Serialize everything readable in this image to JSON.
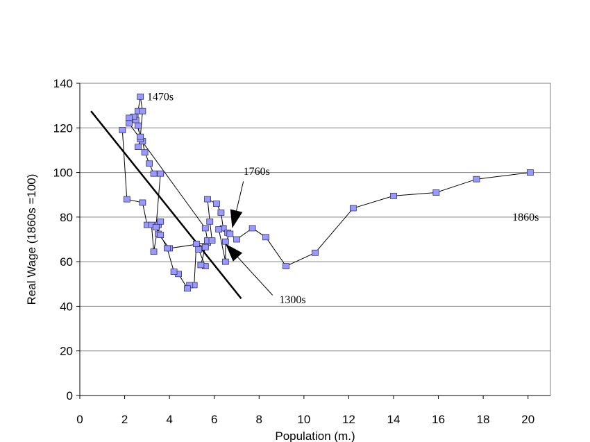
{
  "chart_data": {
    "type": "scatter",
    "xlabel": "Population (m.)",
    "ylabel": "Real Wage (1860s =100)",
    "xlim": [
      0,
      21
    ],
    "ylim": [
      0,
      140
    ],
    "x_ticks": [
      0,
      2,
      4,
      6,
      8,
      10,
      12,
      14,
      16,
      18,
      20
    ],
    "y_ticks": [
      0,
      20,
      40,
      60,
      80,
      100,
      120,
      140
    ],
    "grid": "horizontal",
    "series": [
      {
        "marker": "square",
        "color": "#9999ff",
        "points": [
          [
            1.9,
            119
          ],
          [
            2.1,
            88
          ],
          [
            2.8,
            86.5
          ],
          [
            3.0,
            76.5
          ],
          [
            3.2,
            76.5
          ],
          [
            3.3,
            64.5
          ],
          [
            3.5,
            76.5
          ],
          [
            3.6,
            78
          ],
          [
            3.5,
            72.5
          ],
          [
            4.0,
            66
          ],
          [
            5.7,
            68.5
          ],
          [
            5.3,
            65.5
          ],
          [
            5.6,
            58
          ],
          [
            5.4,
            58.5
          ],
          [
            5.6,
            66.5
          ],
          [
            5.2,
            68
          ],
          [
            5.1,
            49.5
          ],
          [
            4.9,
            49.5
          ],
          [
            4.8,
            48
          ],
          [
            4.4,
            54.5
          ],
          [
            4.2,
            55.5
          ],
          [
            3.9,
            66
          ],
          [
            3.6,
            72
          ],
          [
            3.4,
            75.5
          ],
          [
            3.6,
            99.5
          ],
          [
            3.3,
            99.5
          ],
          [
            3.1,
            104
          ],
          [
            2.9,
            109
          ],
          [
            2.8,
            114
          ],
          [
            2.6,
            111.5
          ],
          [
            2.7,
            115
          ],
          [
            2.6,
            121
          ],
          [
            2.6,
            127.5
          ],
          [
            2.7,
            134
          ],
          [
            2.8,
            127.5
          ],
          [
            2.7,
            116
          ],
          [
            2.5,
            123.5
          ],
          [
            2.4,
            125
          ],
          [
            2.2,
            124.5
          ],
          [
            2.2,
            122
          ],
          [
            5.6,
            75
          ],
          [
            5.7,
            69.5
          ],
          [
            5.9,
            69.5
          ],
          [
            5.8,
            78
          ],
          [
            5.7,
            88
          ],
          [
            6.1,
            86
          ],
          [
            6.3,
            82
          ],
          [
            6.4,
            75
          ],
          [
            6.6,
            73
          ],
          [
            6.2,
            74.5
          ],
          [
            6.5,
            60
          ],
          [
            6.5,
            69
          ],
          [
            6.7,
            72.5
          ],
          [
            7.0,
            70
          ],
          [
            7.7,
            75
          ],
          [
            8.3,
            71
          ],
          [
            9.2,
            58
          ],
          [
            10.5,
            64
          ],
          [
            12.2,
            84
          ],
          [
            14.0,
            89.5
          ],
          [
            15.9,
            91
          ],
          [
            17.7,
            97
          ],
          [
            20.1,
            100
          ]
        ]
      }
    ],
    "trend_line": [
      [
        0.5,
        127.5
      ],
      [
        7.2,
        43.5
      ]
    ],
    "annotations": [
      {
        "text": "1470s",
        "x": 3.0,
        "y": 134
      },
      {
        "text": "1760s",
        "x": 7.3,
        "y": 100.5
      },
      {
        "text": "1300s",
        "x": 8.9,
        "y": 43
      },
      {
        "text": "1860s",
        "x": 19.3,
        "y": 80
      }
    ],
    "arrows": [
      {
        "from": [
          7.3,
          96
        ],
        "to": [
          6.8,
          75
        ]
      },
      {
        "from": [
          8.6,
          45
        ],
        "to": [
          6.5,
          68
        ]
      }
    ]
  }
}
